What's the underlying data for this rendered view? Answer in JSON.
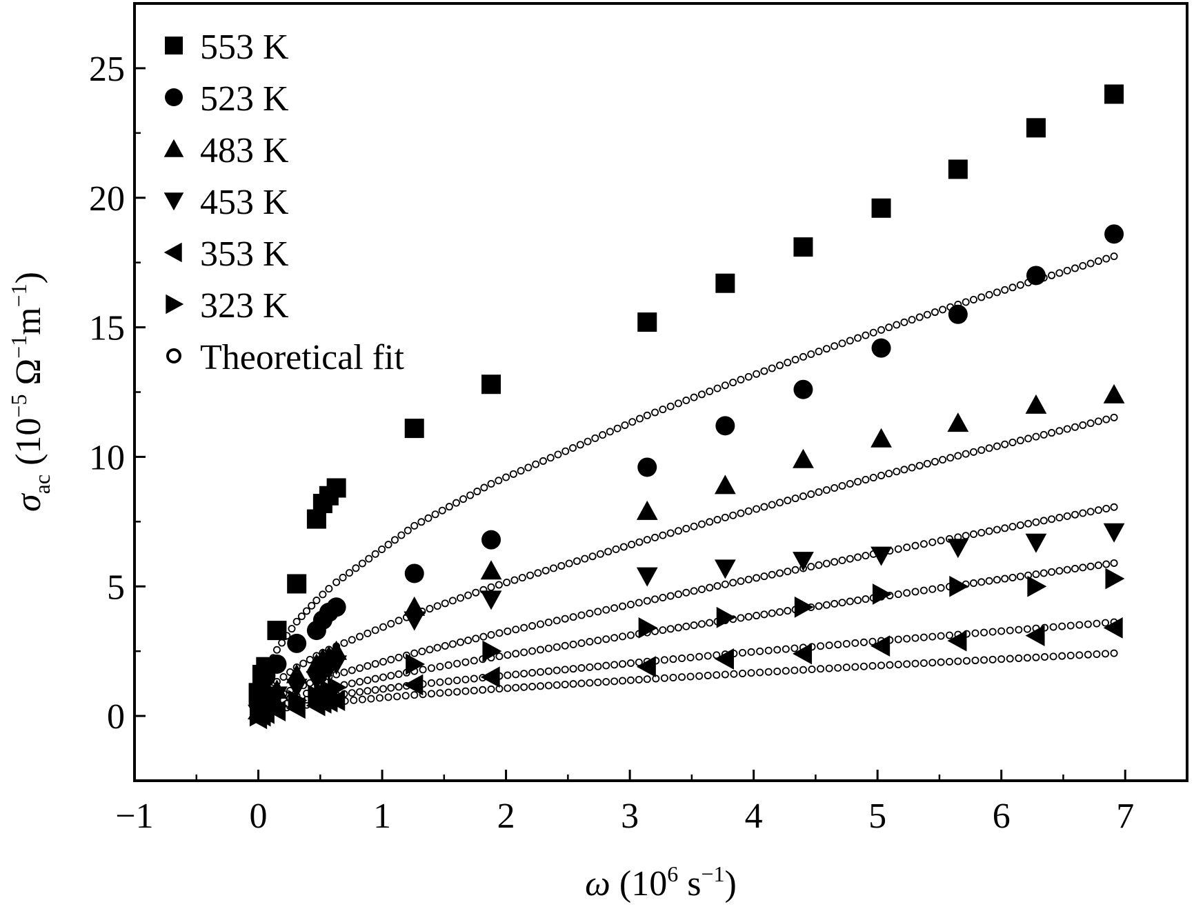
{
  "chart_data": {
    "type": "scatter",
    "title": "",
    "xlabel": {
      "symbol": "ω",
      "text": " (10",
      "sup": "6",
      "text2": " s",
      "sup2": "−1",
      "text3": ")"
    },
    "ylabel": {
      "symbol": "σ",
      "sub": "ac",
      "text": " (10",
      "sup": "−5",
      "text2": " Ω",
      "sup2": "−1",
      "text3": "m",
      "sup3": "−1",
      "text4": ")"
    },
    "xlim": [
      -1,
      7.5
    ],
    "ylim": [
      -2.5,
      27.5
    ],
    "xticks": [
      -1,
      0,
      1,
      2,
      3,
      4,
      5,
      6,
      7
    ],
    "xtick_labels": [
      "−1",
      "0",
      "1",
      "2",
      "3",
      "4",
      "5",
      "6",
      "7"
    ],
    "yticks": [
      0,
      5,
      10,
      15,
      20,
      25
    ],
    "ytick_labels": [
      "0",
      "5",
      "10",
      "15",
      "20",
      "25"
    ],
    "legend_position": "top-left",
    "legend_fit_label": "Theoretical fit",
    "x": [
      0.0,
      0.03,
      0.06,
      0.15,
      0.31,
      0.47,
      0.52,
      0.57,
      0.63,
      1.26,
      1.88,
      3.14,
      3.77,
      4.4,
      5.03,
      5.65,
      6.28,
      6.91
    ],
    "series": [
      {
        "name": "553 K",
        "marker": "square",
        "values": [
          0.9,
          1.6,
          1.9,
          3.3,
          5.1,
          7.6,
          8.2,
          8.5,
          8.8,
          11.1,
          12.8,
          15.2,
          16.7,
          18.1,
          19.6,
          21.1,
          22.7,
          24.0
        ],
        "fit": [
          0.0,
          1.15,
          1.62,
          2.55,
          3.64,
          4.46,
          4.69,
          4.91,
          5.16,
          7.34,
          8.96,
          11.6,
          12.76,
          13.86,
          14.9,
          15.88,
          16.82,
          17.74
        ]
      },
      {
        "name": "523 K",
        "marker": "circle",
        "values": [
          0.5,
          1.0,
          1.5,
          2.0,
          2.8,
          3.3,
          3.7,
          4.0,
          4.2,
          5.5,
          6.8,
          9.6,
          11.2,
          12.6,
          14.2,
          15.5,
          17.0,
          18.6
        ],
        "fit": [
          0.0,
          0.59,
          0.83,
          1.32,
          1.88,
          2.32,
          2.44,
          2.56,
          2.69,
          3.93,
          4.97,
          6.8,
          7.66,
          8.48,
          9.28,
          10.04,
          10.78,
          11.52
        ]
      },
      {
        "name": "483 K",
        "marker": "triangle-up",
        "values": [
          0.2,
          0.5,
          0.7,
          1.0,
          1.6,
          2.0,
          2.2,
          2.3,
          2.5,
          4.2,
          5.6,
          7.9,
          8.9,
          9.9,
          10.7,
          11.3,
          12.0,
          12.4
        ],
        "fit": [
          0.0,
          0.33,
          0.47,
          0.75,
          1.09,
          1.36,
          1.44,
          1.51,
          1.6,
          2.42,
          3.13,
          4.44,
          5.08,
          5.7,
          6.31,
          6.9,
          7.48,
          8.06
        ]
      },
      {
        "name": "453 K",
        "marker": "triangle-down",
        "values": [
          0.1,
          0.3,
          0.5,
          0.8,
          1.1,
          1.4,
          1.6,
          1.8,
          2.0,
          3.7,
          4.5,
          5.4,
          5.7,
          6.0,
          6.2,
          6.5,
          6.7,
          7.1
        ],
        "fit": [
          0.0,
          0.23,
          0.33,
          0.53,
          0.77,
          0.97,
          1.02,
          1.07,
          1.14,
          1.73,
          2.25,
          3.22,
          3.69,
          4.15,
          4.6,
          5.04,
          5.47,
          5.9
        ]
      },
      {
        "name": "353 K",
        "marker": "triangle-left",
        "values": [
          -0.1,
          0.0,
          0.1,
          0.2,
          0.3,
          0.4,
          0.5,
          0.55,
          0.6,
          1.2,
          1.5,
          1.9,
          2.2,
          2.4,
          2.7,
          2.9,
          3.1,
          3.4
        ],
        "fit": [
          0.0,
          0.12,
          0.17,
          0.27,
          0.38,
          0.47,
          0.5,
          0.52,
          0.55,
          0.81,
          1.03,
          1.42,
          1.6,
          1.78,
          1.95,
          2.11,
          2.26,
          2.42
        ]
      },
      {
        "name": "323 K",
        "marker": "triangle-right",
        "values": [
          0.0,
          0.1,
          0.2,
          0.4,
          0.6,
          0.8,
          0.9,
          1.0,
          1.1,
          2.0,
          2.5,
          3.4,
          3.8,
          4.2,
          4.7,
          5.0,
          5.0,
          5.3
        ],
        "fit": [
          0.0,
          0.18,
          0.25,
          0.39,
          0.56,
          0.69,
          0.73,
          0.77,
          0.81,
          1.2,
          1.51,
          2.1,
          2.38,
          2.64,
          2.9,
          3.14,
          3.38,
          3.62
        ]
      }
    ],
    "colors": {
      "ink": "#000000",
      "background": "#ffffff",
      "fit_marker_fill": "#ffffff"
    }
  }
}
